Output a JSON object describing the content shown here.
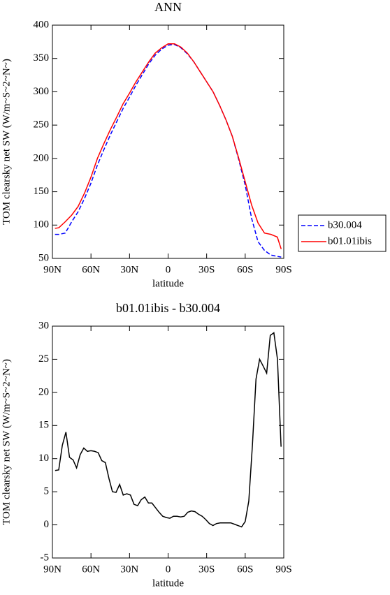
{
  "chart_data": [
    {
      "type": "line",
      "title": "ANN",
      "xlabel": "latitude",
      "ylabel": "TOM clearsky net SW (W/m~S~2~N~)",
      "x": [
        88,
        85,
        80,
        75,
        70,
        65,
        60,
        55,
        50,
        45,
        40,
        35,
        30,
        25,
        20,
        15,
        10,
        5,
        0,
        -5,
        -10,
        -15,
        -20,
        -25,
        -30,
        -35,
        -40,
        -45,
        -50,
        -55,
        -60,
        -65,
        -70,
        -75,
        -80,
        -85,
        -88
      ],
      "series": [
        {
          "name": "b30.004",
          "color": "#0000ff",
          "linestyle": "dashed",
          "values": [
            86,
            86,
            88,
            105,
            120,
            140,
            163,
            190,
            213,
            235,
            255,
            275,
            292,
            310,
            326,
            342,
            355,
            364,
            370,
            371,
            366,
            357,
            345,
            330,
            315,
            300,
            280,
            258,
            233,
            198,
            160,
            110,
            75,
            62,
            55,
            53,
            52
          ]
        },
        {
          "name": "b01.01ibis",
          "color": "#ff0000",
          "linestyle": "solid",
          "values": [
            95,
            96,
            105,
            115,
            128,
            148,
            172,
            200,
            222,
            243,
            262,
            282,
            298,
            315,
            330,
            345,
            358,
            366,
            372,
            372,
            367,
            358,
            345,
            330,
            315,
            300,
            280,
            258,
            233,
            200,
            165,
            130,
            103,
            88,
            86,
            82,
            64
          ]
        }
      ],
      "xlim": [
        90,
        -90
      ],
      "xticks": [
        {
          "value": 90,
          "label": "90N"
        },
        {
          "value": 60,
          "label": "60N"
        },
        {
          "value": 30,
          "label": "30N"
        },
        0,
        {
          "value": -30,
          "label": "30S"
        },
        {
          "value": -60,
          "label": "60S"
        },
        {
          "value": -90,
          "label": "90S"
        }
      ],
      "ylim": [
        50,
        400
      ],
      "yticks": [
        50,
        100,
        150,
        200,
        250,
        300,
        350,
        400
      ],
      "legend": "right"
    },
    {
      "type": "line",
      "title": "b01.01ibis - b30.004",
      "xlabel": "latitude",
      "ylabel": "TOM clearsky net SW (W/m~S~2~N~)",
      "x": [
        87.9,
        85.1,
        82.3,
        79.5,
        76.7,
        73.9,
        71.2,
        68.4,
        65.6,
        62.8,
        60.0,
        57.2,
        54.4,
        51.6,
        48.8,
        46.0,
        43.3,
        40.5,
        37.7,
        34.9,
        32.1,
        29.3,
        26.5,
        23.7,
        20.9,
        18.1,
        15.3,
        12.6,
        9.8,
        7.0,
        4.2,
        1.4,
        -1.4,
        -4.2,
        -7.0,
        -9.8,
        -12.6,
        -15.3,
        -18.1,
        -20.9,
        -23.7,
        -26.5,
        -29.3,
        -32.1,
        -34.9,
        -37.7,
        -40.5,
        -43.3,
        -46.0,
        -48.8,
        -51.6,
        -54.4,
        -57.2,
        -60.0,
        -62.8,
        -65.6,
        -68.4,
        -71.2,
        -73.9,
        -76.7,
        -79.5,
        -82.3,
        -85.1,
        -87.9
      ],
      "values": [
        8.2,
        8.3,
        12,
        14,
        10.2,
        9.8,
        8.6,
        10.6,
        11.6,
        11.1,
        11.2,
        11.1,
        10.9,
        9.7,
        9.4,
        7,
        5,
        4.9,
        6.1,
        4.5,
        4.7,
        4.5,
        3.1,
        2.9,
        3.8,
        4.2,
        3.3,
        3.3,
        2.6,
        1.9,
        1.3,
        1.1,
        1.0,
        1.3,
        1.3,
        1.2,
        1.3,
        1.9,
        2.1,
        2.0,
        1.6,
        1.3,
        0.8,
        0.2,
        -0.1,
        0.2,
        0.3,
        0.3,
        0.3,
        0.3,
        0.1,
        -0.1,
        -0.3,
        0.5,
        3.6,
        12,
        22,
        25,
        24,
        22.9,
        28.6,
        29,
        25,
        11.8
      ],
      "color": "#000000",
      "xlim": [
        90,
        -90
      ],
      "xticks": [
        {
          "value": 90,
          "label": "90N"
        },
        {
          "value": 60,
          "label": "60N"
        },
        {
          "value": 30,
          "label": "30N"
        },
        0,
        {
          "value": -30,
          "label": "30S"
        },
        {
          "value": -60,
          "label": "60S"
        },
        {
          "value": -90,
          "label": "90S"
        }
      ],
      "ylim": [
        -5,
        30
      ],
      "yticks": [
        -5,
        0,
        5,
        10,
        15,
        20,
        25,
        30
      ]
    }
  ]
}
